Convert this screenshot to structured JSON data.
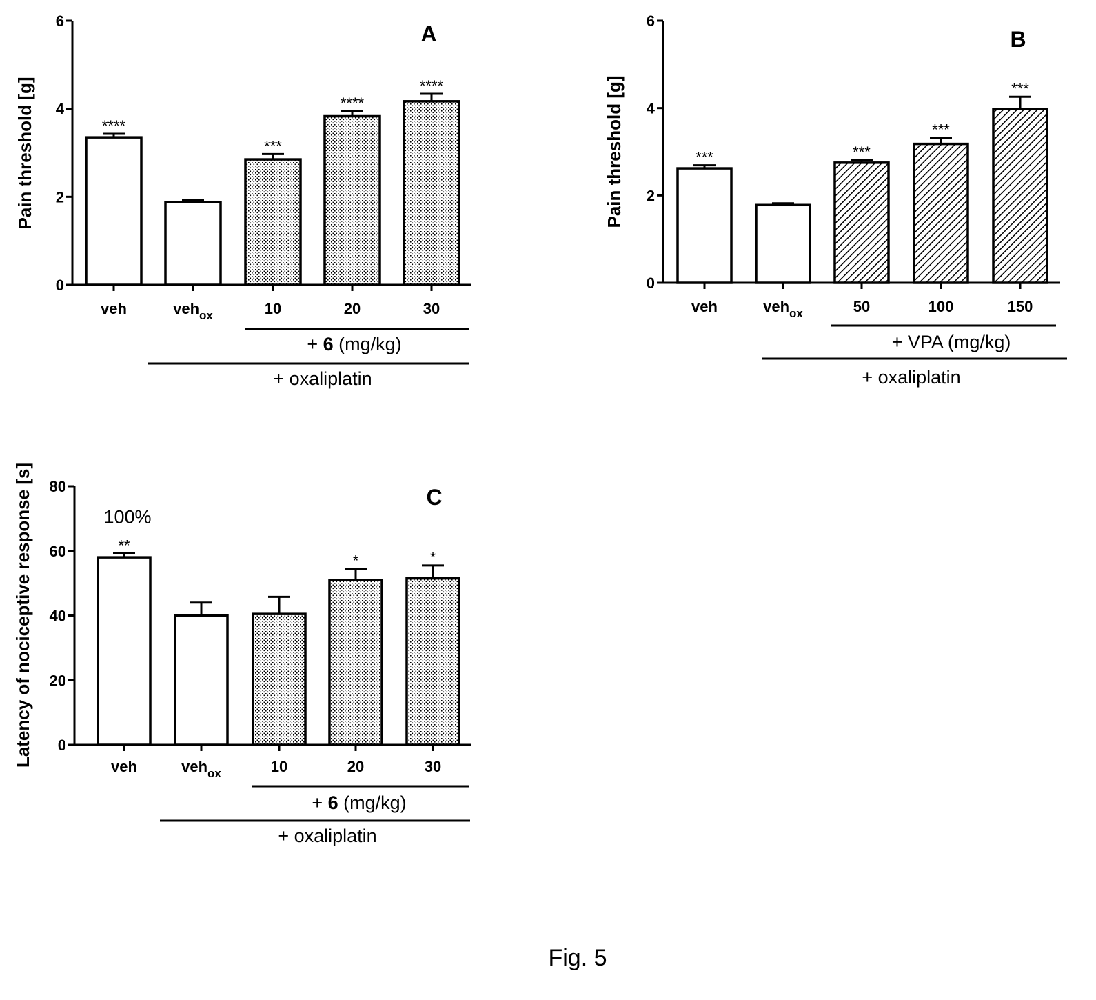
{
  "caption": "Fig. 5",
  "chart_data": [
    {
      "panel": "A",
      "type": "bar",
      "ylabel": "Pain threshold [g]",
      "ylim": [
        0,
        6
      ],
      "yticks": [
        "0",
        "2",
        "4",
        "6"
      ],
      "categories": [
        {
          "main": "veh",
          "sub": ""
        },
        {
          "main": "veh",
          "sub": "ox"
        },
        {
          "main": "10",
          "sub": ""
        },
        {
          "main": "20",
          "sub": ""
        },
        {
          "main": "30",
          "sub": ""
        }
      ],
      "values": [
        3.35,
        1.88,
        2.85,
        3.83,
        4.17
      ],
      "errors": [
        0.08,
        0.05,
        0.12,
        0.12,
        0.17
      ],
      "significance": [
        "****",
        "",
        "***",
        "****",
        "****"
      ],
      "fill": [
        "white",
        "white",
        "dots",
        "dots",
        "dots"
      ],
      "annotations": [],
      "treatment_label": {
        "prefix": "+ ",
        "bold": "6",
        "suffix": " (mg/kg)"
      },
      "oxaliplatin_label": "+ oxaliplatin"
    },
    {
      "panel": "B",
      "type": "bar",
      "ylabel": "Pain threshold [g]",
      "ylim": [
        0,
        6
      ],
      "yticks": [
        "0",
        "2",
        "4",
        "6"
      ],
      "categories": [
        {
          "main": "veh",
          "sub": ""
        },
        {
          "main": "veh",
          "sub": "ox"
        },
        {
          "main": "50",
          "sub": ""
        },
        {
          "main": "100",
          "sub": ""
        },
        {
          "main": "150",
          "sub": ""
        }
      ],
      "values": [
        2.62,
        1.78,
        2.75,
        3.18,
        3.98
      ],
      "errors": [
        0.07,
        0.04,
        0.06,
        0.14,
        0.28
      ],
      "significance": [
        "***",
        "",
        "***",
        "***",
        "***"
      ],
      "fill": [
        "white",
        "white",
        "hatch",
        "hatch",
        "hatch"
      ],
      "annotations": [],
      "treatment_label": {
        "prefix": "+ VPA (mg/kg)",
        "bold": "",
        "suffix": ""
      },
      "oxaliplatin_label": "+ oxaliplatin"
    },
    {
      "panel": "C",
      "type": "bar",
      "ylabel": "Latency of nociceptive  response [s]",
      "ylim": [
        0,
        80
      ],
      "yticks": [
        "0",
        "20",
        "40",
        "60",
        "80"
      ],
      "categories": [
        {
          "main": "veh",
          "sub": ""
        },
        {
          "main": "veh",
          "sub": "ox"
        },
        {
          "main": "10",
          "sub": ""
        },
        {
          "main": "20",
          "sub": ""
        },
        {
          "main": "30",
          "sub": ""
        }
      ],
      "values": [
        58,
        40,
        40.5,
        51,
        51.5
      ],
      "errors": [
        1.2,
        4,
        5.3,
        3.5,
        4
      ],
      "significance": [
        "**",
        "",
        "",
        "*",
        "*"
      ],
      "fill": [
        "white",
        "white",
        "dots",
        "dots",
        "dots"
      ],
      "annotations": [
        {
          "bar": 0,
          "text": "100%"
        }
      ],
      "treatment_label": {
        "prefix": "+ ",
        "bold": "6",
        "suffix": " (mg/kg)"
      },
      "oxaliplatin_label": "+ oxaliplatin"
    }
  ]
}
